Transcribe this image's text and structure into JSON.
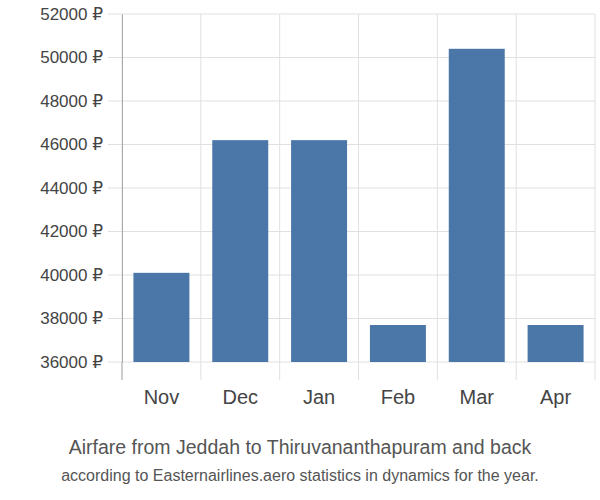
{
  "chart_data": {
    "type": "bar",
    "title": "Airfare from Jeddah to Thiruvananthapuram and back",
    "subtitle": "according to Easternairlines.aero statistics in dynamics for the year.",
    "categories": [
      "Nov",
      "Dec",
      "Jan",
      "Feb",
      "Mar",
      "Apr"
    ],
    "values": [
      40100,
      46200,
      46200,
      37700,
      50400,
      37700
    ],
    "color": "#4a76a8",
    "ylim": [
      36000,
      52000
    ],
    "yticks": [
      {
        "value": 36000,
        "label": "36000 ₽"
      },
      {
        "value": 38000,
        "label": "38000 ₽"
      },
      {
        "value": 40000,
        "label": "40000 ₽"
      },
      {
        "value": 42000,
        "label": "42000 ₽"
      },
      {
        "value": 44000,
        "label": "44000 ₽"
      },
      {
        "value": 46000,
        "label": "46000 ₽"
      },
      {
        "value": 48000,
        "label": "48000 ₽"
      },
      {
        "value": 50000,
        "label": "50000 ₽"
      },
      {
        "value": 52000,
        "label": "52000 ₽"
      }
    ],
    "grid": true
  }
}
